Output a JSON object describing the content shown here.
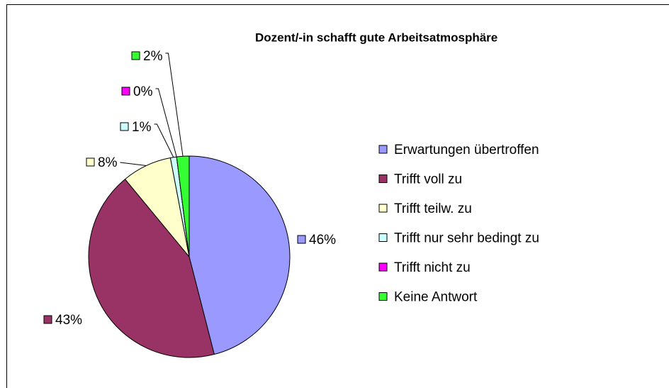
{
  "chart_data": {
    "type": "pie",
    "title": "Dozent/-in schafft gute Arbeitsatmosphäre",
    "categories": [
      "Erwartungen übertroffen",
      "Trifft voll zu",
      "Trifft teilw. zu",
      "Trifft nur sehr bedingt zu",
      "Trifft nicht zu",
      "Keine Antwort"
    ],
    "values": [
      46,
      43,
      8,
      1,
      0,
      2
    ],
    "value_labels": [
      "46%",
      "43%",
      "8%",
      "1%",
      "0%",
      "2%"
    ],
    "colors": [
      "#9999ff",
      "#993366",
      "#ffffcc",
      "#ccffff",
      "#ff00ff",
      "#33ff33"
    ],
    "legend": "right"
  }
}
